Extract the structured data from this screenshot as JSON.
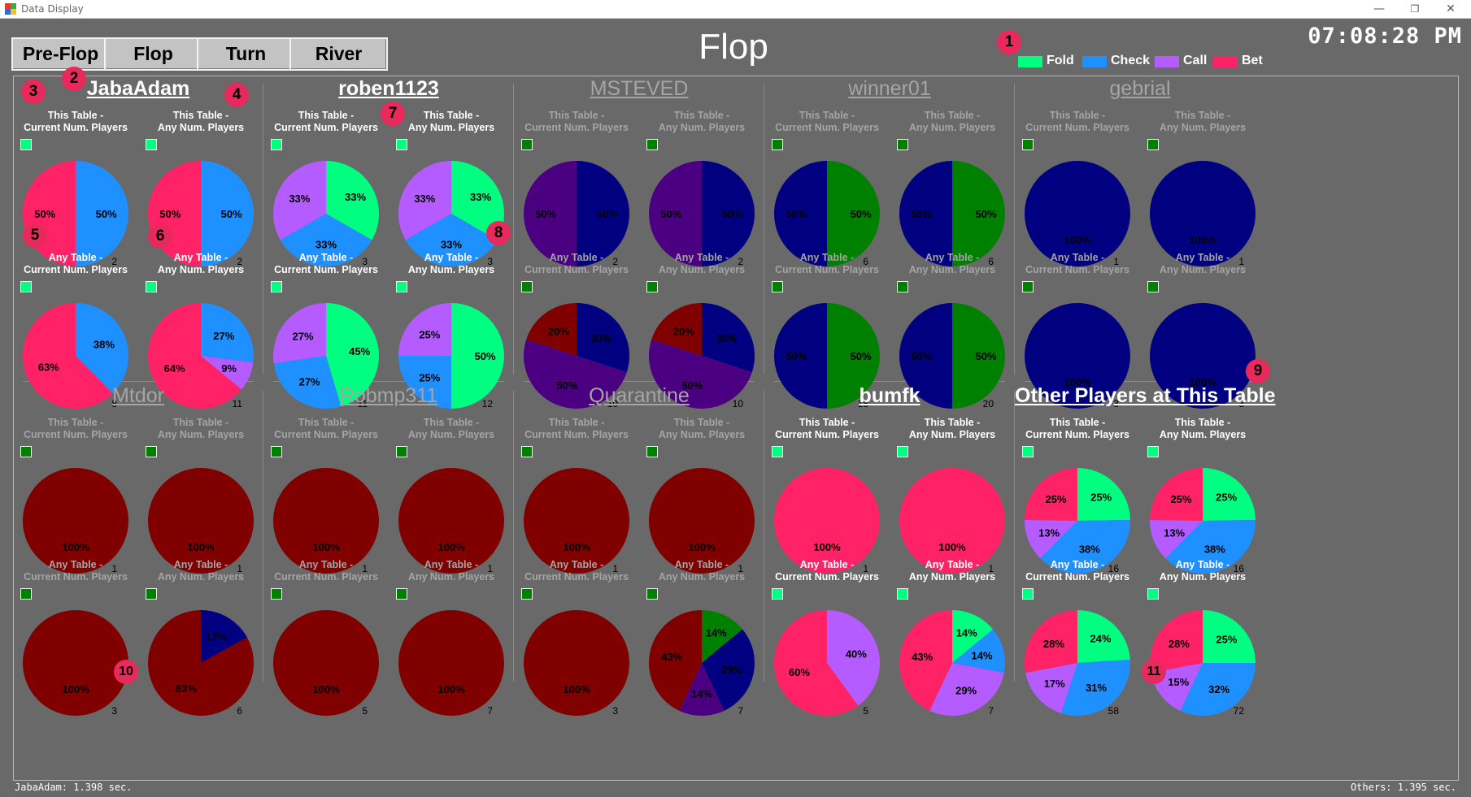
{
  "window": {
    "title": "Data Display",
    "min_glyph": "—",
    "max_glyph": "❐",
    "close_glyph": "✕"
  },
  "streets": [
    {
      "label": "Pre-Flop",
      "active": false
    },
    {
      "label": "Flop",
      "active": true
    },
    {
      "label": "Turn",
      "active": false
    },
    {
      "label": "River",
      "active": false
    }
  ],
  "title": "Flop",
  "clock": "07:08:28 PM",
  "legend": [
    {
      "label": "Fold",
      "color": "#00ff80"
    },
    {
      "label": "Check",
      "color": "#1e90ff"
    },
    {
      "label": "Call",
      "color": "#b45cff"
    },
    {
      "label": "Bet",
      "color": "#ff2266"
    }
  ],
  "dim_colors": [
    "#008000",
    "#000080",
    "#4b0082",
    "#800000"
  ],
  "cell_titles": [
    [
      "This Table -",
      "Current Num. Players"
    ],
    [
      "This Table -",
      "Any Num. Players"
    ],
    [
      "Any Table -",
      "Current Num. Players"
    ],
    [
      "Any Table -",
      "Any Num. Players"
    ]
  ],
  "players": [
    {
      "name": "JabaAdam",
      "active": true,
      "charts": [
        {
          "values": [
            0,
            50,
            0,
            50
          ],
          "count": 2
        },
        {
          "values": [
            0,
            50,
            0,
            50
          ],
          "count": 2
        },
        {
          "values": [
            0,
            38,
            0,
            63
          ],
          "count": 8
        },
        {
          "values": [
            0,
            27,
            9,
            64
          ],
          "count": 11
        }
      ]
    },
    {
      "name": "roben1123",
      "active": true,
      "charts": [
        {
          "values": [
            33,
            33,
            33,
            0
          ],
          "count": 3
        },
        {
          "values": [
            33,
            33,
            33,
            0
          ],
          "count": 3
        },
        {
          "values": [
            45,
            27,
            27,
            0
          ],
          "count": 11
        },
        {
          "values": [
            50,
            25,
            25,
            0
          ],
          "count": 12
        }
      ]
    },
    {
      "name": "MSTEVED",
      "active": false,
      "charts": [
        {
          "values": [
            0,
            50,
            50,
            0
          ],
          "count": 2
        },
        {
          "values": [
            0,
            50,
            50,
            0
          ],
          "count": 2
        },
        {
          "values": [
            0,
            30,
            50,
            20
          ],
          "count": 10
        },
        {
          "values": [
            0,
            30,
            50,
            20
          ],
          "count": 10
        }
      ]
    },
    {
      "name": "winner01",
      "active": false,
      "charts": [
        {
          "values": [
            50,
            50,
            0,
            0
          ],
          "count": 6
        },
        {
          "values": [
            50,
            50,
            0,
            0
          ],
          "count": 6
        },
        {
          "values": [
            50,
            50,
            0,
            0
          ],
          "count": 18
        },
        {
          "values": [
            50,
            50,
            0,
            0
          ],
          "count": 20
        }
      ]
    },
    {
      "name": "gebrial",
      "active": false,
      "charts": [
        {
          "values": [
            0,
            100,
            0,
            0
          ],
          "count": 1
        },
        {
          "values": [
            0,
            100,
            0,
            0
          ],
          "count": 1
        },
        {
          "values": [
            0,
            100,
            0,
            0
          ],
          "count": 3
        },
        {
          "values": [
            0,
            100,
            0,
            0
          ],
          "count": 3
        }
      ]
    },
    {
      "name": "Mtdor",
      "active": false,
      "charts": [
        {
          "values": [
            0,
            0,
            0,
            100
          ],
          "count": 1
        },
        {
          "values": [
            0,
            0,
            0,
            100
          ],
          "count": 1
        },
        {
          "values": [
            0,
            0,
            0,
            100
          ],
          "count": 3
        },
        {
          "values": [
            0,
            17,
            0,
            83
          ],
          "count": 6
        }
      ]
    },
    {
      "name": "Robmp311",
      "active": false,
      "charts": [
        {
          "values": [
            0,
            0,
            0,
            100
          ],
          "count": 1
        },
        {
          "values": [
            0,
            0,
            0,
            100
          ],
          "count": 1
        },
        {
          "values": [
            0,
            0,
            0,
            100
          ],
          "count": 5
        },
        {
          "values": [
            0,
            0,
            0,
            100
          ],
          "count": 7
        }
      ]
    },
    {
      "name": "Quarantine",
      "active": false,
      "charts": [
        {
          "values": [
            0,
            0,
            0,
            100
          ],
          "count": 1
        },
        {
          "values": [
            0,
            0,
            0,
            100
          ],
          "count": 1
        },
        {
          "values": [
            0,
            0,
            0,
            100
          ],
          "count": 3
        },
        {
          "values": [
            14,
            29,
            14,
            43
          ],
          "count": 7
        }
      ]
    },
    {
      "name": "bumfk",
      "active": true,
      "charts": [
        {
          "values": [
            0,
            0,
            0,
            100
          ],
          "count": 1
        },
        {
          "values": [
            0,
            0,
            0,
            100
          ],
          "count": 1
        },
        {
          "values": [
            0,
            0,
            40,
            60
          ],
          "count": 5
        },
        {
          "values": [
            14,
            14,
            29,
            43
          ],
          "count": 7
        }
      ]
    },
    {
      "name": "Other Players at This Table",
      "active": true,
      "charts": [
        {
          "values": [
            25,
            38,
            13,
            25
          ],
          "count": 16
        },
        {
          "values": [
            25,
            38,
            13,
            25
          ],
          "count": 16
        },
        {
          "values": [
            24,
            31,
            17,
            28
          ],
          "count": 58
        },
        {
          "values": [
            25,
            32,
            15,
            28
          ],
          "count": 72
        }
      ]
    }
  ],
  "badges": [
    "1",
    "2",
    "3",
    "4",
    "5",
    "6",
    "7",
    "8",
    "9",
    "10",
    "11"
  ],
  "status": {
    "left": "JabaAdam: 1.398 sec.",
    "right": "Others: 1.395 sec."
  }
}
